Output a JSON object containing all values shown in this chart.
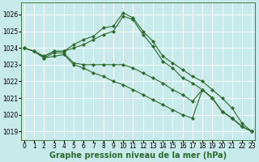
{
  "background_color": "#c8eaea",
  "grid_color": "#ffffff",
  "line_color": "#2d6a2d",
  "marker": "D",
  "xlabel": "Graphe pression niveau de la mer (hPa)",
  "xlabel_fontsize": 7,
  "ylim": [
    1018.5,
    1026.7
  ],
  "xlim": [
    -0.3,
    23.3
  ],
  "yticks": [
    1019,
    1020,
    1021,
    1022,
    1023,
    1024,
    1025,
    1026
  ],
  "xticks": [
    0,
    1,
    2,
    3,
    4,
    5,
    6,
    7,
    8,
    9,
    10,
    11,
    12,
    13,
    14,
    15,
    16,
    17,
    18,
    19,
    20,
    21,
    22,
    23
  ],
  "series": [
    [
      1024.0,
      1023.8,
      1023.5,
      1023.8,
      1023.8,
      1024.2,
      1024.5,
      1024.7,
      1025.2,
      1025.3,
      1026.1,
      1025.8,
      1025.0,
      1024.4,
      1023.5,
      1023.1,
      1022.7,
      1022.3,
      1022.0,
      1021.5,
      1021.0,
      1020.4,
      1019.5,
      1019.0
    ],
    [
      1024.0,
      1023.8,
      1023.5,
      1023.8,
      1023.8,
      1024.0,
      1024.2,
      1024.5,
      1024.8,
      1025.0,
      1025.9,
      1025.7,
      1024.8,
      1024.1,
      1023.2,
      1022.8,
      1022.2,
      1021.9,
      1021.5,
      1021.0,
      1020.2,
      1019.8,
      1019.3,
      1019.0
    ],
    [
      1024.0,
      1023.8,
      1023.4,
      1023.7,
      1023.7,
      1023.1,
      1023.0,
      1023.0,
      1023.0,
      1023.0,
      1023.0,
      1022.8,
      1022.5,
      1022.2,
      1021.9,
      1021.5,
      1021.2,
      1020.8,
      1021.5,
      1021.0,
      1020.2,
      1019.8,
      1019.3,
      1019.0
    ],
    [
      1024.0,
      1023.8,
      1023.4,
      1023.5,
      1023.6,
      1023.0,
      1022.8,
      1022.5,
      1022.3,
      1022.0,
      1021.8,
      1021.5,
      1021.2,
      1020.9,
      1020.6,
      1020.3,
      1020.0,
      1019.8,
      1021.5,
      1021.0,
      1020.2,
      1019.8,
      1019.3,
      1019.0
    ]
  ]
}
